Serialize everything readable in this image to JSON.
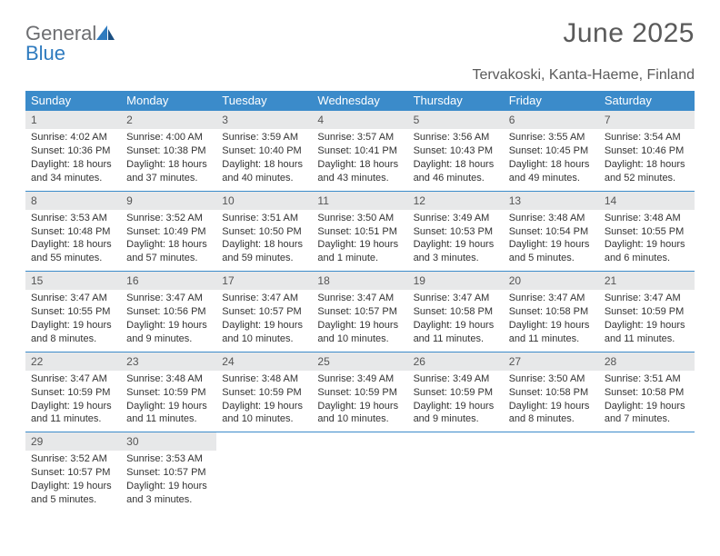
{
  "brand": {
    "text1": "General",
    "text2": "Blue"
  },
  "title": "June 2025",
  "location": "Tervakoski, Kanta-Haeme, Finland",
  "colors": {
    "header_bg": "#3b8bca",
    "header_text": "#ffffff",
    "daynum_bg": "#e7e8e9",
    "border": "#3b8bca",
    "body_text": "#333333",
    "title_text": "#5a5a5a",
    "logo_gray": "#6d6e71",
    "logo_blue": "#2f7bbf"
  },
  "dayNames": [
    "Sunday",
    "Monday",
    "Tuesday",
    "Wednesday",
    "Thursday",
    "Friday",
    "Saturday"
  ],
  "weeks": [
    [
      {
        "n": "1",
        "sr": "4:02 AM",
        "ss": "10:36 PM",
        "dl": "18 hours and 34 minutes."
      },
      {
        "n": "2",
        "sr": "4:00 AM",
        "ss": "10:38 PM",
        "dl": "18 hours and 37 minutes."
      },
      {
        "n": "3",
        "sr": "3:59 AM",
        "ss": "10:40 PM",
        "dl": "18 hours and 40 minutes."
      },
      {
        "n": "4",
        "sr": "3:57 AM",
        "ss": "10:41 PM",
        "dl": "18 hours and 43 minutes."
      },
      {
        "n": "5",
        "sr": "3:56 AM",
        "ss": "10:43 PM",
        "dl": "18 hours and 46 minutes."
      },
      {
        "n": "6",
        "sr": "3:55 AM",
        "ss": "10:45 PM",
        "dl": "18 hours and 49 minutes."
      },
      {
        "n": "7",
        "sr": "3:54 AM",
        "ss": "10:46 PM",
        "dl": "18 hours and 52 minutes."
      }
    ],
    [
      {
        "n": "8",
        "sr": "3:53 AM",
        "ss": "10:48 PM",
        "dl": "18 hours and 55 minutes."
      },
      {
        "n": "9",
        "sr": "3:52 AM",
        "ss": "10:49 PM",
        "dl": "18 hours and 57 minutes."
      },
      {
        "n": "10",
        "sr": "3:51 AM",
        "ss": "10:50 PM",
        "dl": "18 hours and 59 minutes."
      },
      {
        "n": "11",
        "sr": "3:50 AM",
        "ss": "10:51 PM",
        "dl": "19 hours and 1 minute."
      },
      {
        "n": "12",
        "sr": "3:49 AM",
        "ss": "10:53 PM",
        "dl": "19 hours and 3 minutes."
      },
      {
        "n": "13",
        "sr": "3:48 AM",
        "ss": "10:54 PM",
        "dl": "19 hours and 5 minutes."
      },
      {
        "n": "14",
        "sr": "3:48 AM",
        "ss": "10:55 PM",
        "dl": "19 hours and 6 minutes."
      }
    ],
    [
      {
        "n": "15",
        "sr": "3:47 AM",
        "ss": "10:55 PM",
        "dl": "19 hours and 8 minutes."
      },
      {
        "n": "16",
        "sr": "3:47 AM",
        "ss": "10:56 PM",
        "dl": "19 hours and 9 minutes."
      },
      {
        "n": "17",
        "sr": "3:47 AM",
        "ss": "10:57 PM",
        "dl": "19 hours and 10 minutes."
      },
      {
        "n": "18",
        "sr": "3:47 AM",
        "ss": "10:57 PM",
        "dl": "19 hours and 10 minutes."
      },
      {
        "n": "19",
        "sr": "3:47 AM",
        "ss": "10:58 PM",
        "dl": "19 hours and 11 minutes."
      },
      {
        "n": "20",
        "sr": "3:47 AM",
        "ss": "10:58 PM",
        "dl": "19 hours and 11 minutes."
      },
      {
        "n": "21",
        "sr": "3:47 AM",
        "ss": "10:59 PM",
        "dl": "19 hours and 11 minutes."
      }
    ],
    [
      {
        "n": "22",
        "sr": "3:47 AM",
        "ss": "10:59 PM",
        "dl": "19 hours and 11 minutes."
      },
      {
        "n": "23",
        "sr": "3:48 AM",
        "ss": "10:59 PM",
        "dl": "19 hours and 11 minutes."
      },
      {
        "n": "24",
        "sr": "3:48 AM",
        "ss": "10:59 PM",
        "dl": "19 hours and 10 minutes."
      },
      {
        "n": "25",
        "sr": "3:49 AM",
        "ss": "10:59 PM",
        "dl": "19 hours and 10 minutes."
      },
      {
        "n": "26",
        "sr": "3:49 AM",
        "ss": "10:59 PM",
        "dl": "19 hours and 9 minutes."
      },
      {
        "n": "27",
        "sr": "3:50 AM",
        "ss": "10:58 PM",
        "dl": "19 hours and 8 minutes."
      },
      {
        "n": "28",
        "sr": "3:51 AM",
        "ss": "10:58 PM",
        "dl": "19 hours and 7 minutes."
      }
    ],
    [
      {
        "n": "29",
        "sr": "3:52 AM",
        "ss": "10:57 PM",
        "dl": "19 hours and 5 minutes."
      },
      {
        "n": "30",
        "sr": "3:53 AM",
        "ss": "10:57 PM",
        "dl": "19 hours and 3 minutes."
      },
      null,
      null,
      null,
      null,
      null
    ]
  ],
  "labels": {
    "sunrise": "Sunrise: ",
    "sunset": "Sunset: ",
    "daylight": "Daylight: "
  }
}
